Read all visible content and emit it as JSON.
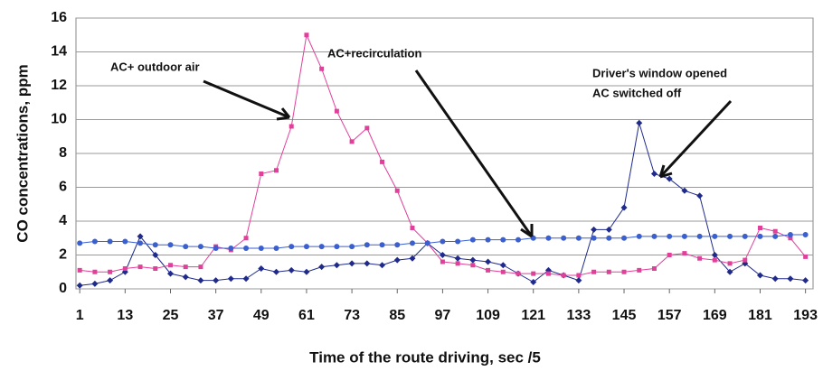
{
  "chart_data": {
    "type": "line",
    "y_label": "CO concentrations, ppm",
    "x_label": "Time of the route driving, sec /5",
    "annotations": [
      "AC+ outdoor air",
      "AC+recirculation",
      "Driver's window  opened",
      "AC switched off"
    ],
    "x": [
      1,
      5,
      9,
      13,
      17,
      21,
      25,
      29,
      33,
      37,
      41,
      45,
      49,
      53,
      57,
      61,
      65,
      69,
      73,
      77,
      81,
      85,
      89,
      93,
      97,
      101,
      105,
      109,
      113,
      117,
      121,
      125,
      129,
      133,
      137,
      141,
      145,
      149,
      153,
      157,
      161,
      165,
      169,
      173,
      177,
      181,
      185,
      189,
      193
    ],
    "series": [
      {
        "color": "#1f2a8a",
        "marker": "diamond",
        "values": [
          0.2,
          0.3,
          0.5,
          1.0,
          3.1,
          2.0,
          0.9,
          0.7,
          0.5,
          0.5,
          0.6,
          0.6,
          1.2,
          1.0,
          1.1,
          1.0,
          1.3,
          1.4,
          1.5,
          1.5,
          1.4,
          1.7,
          1.8,
          2.7,
          2.0,
          1.8,
          1.7,
          1.6,
          1.4,
          0.9,
          0.4,
          1.1,
          0.8,
          0.5,
          3.5,
          3.5,
          4.8,
          9.8,
          6.8,
          6.5,
          5.8,
          5.5,
          2.0,
          1.0,
          1.5,
          0.8,
          0.6,
          0.6,
          0.5
        ]
      },
      {
        "color": "#e0409a",
        "marker": "square",
        "values": [
          1.1,
          1.0,
          1.0,
          1.2,
          1.3,
          1.2,
          1.4,
          1.3,
          1.3,
          2.5,
          2.3,
          3.0,
          6.8,
          7.0,
          9.6,
          15,
          13,
          10.5,
          8.7,
          9.5,
          7.5,
          5.8,
          3.6,
          2.7,
          1.6,
          1.5,
          1.4,
          1.1,
          1.0,
          0.9,
          0.9,
          0.9,
          0.8,
          0.8,
          1.0,
          1.0,
          1.0,
          1.1,
          1.2,
          2.0,
          2.1,
          1.8,
          1.7,
          1.5,
          1.7,
          3.6,
          3.4,
          3.0,
          1.9
        ]
      },
      {
        "color": "#3a5fd0",
        "marker": "circle",
        "values": [
          2.7,
          2.8,
          2.8,
          2.8,
          2.7,
          2.6,
          2.6,
          2.5,
          2.5,
          2.4,
          2.4,
          2.4,
          2.4,
          2.4,
          2.5,
          2.5,
          2.5,
          2.5,
          2.5,
          2.6,
          2.6,
          2.6,
          2.7,
          2.7,
          2.8,
          2.8,
          2.9,
          2.9,
          2.9,
          2.9,
          3.0,
          3.0,
          3.0,
          3.0,
          3.0,
          3.0,
          3.0,
          3.1,
          3.1,
          3.1,
          3.1,
          3.1,
          3.1,
          3.1,
          3.1,
          3.1,
          3.1,
          3.2,
          3.2
        ]
      }
    ],
    "xlim": [
      0,
      195
    ],
    "xticks": [
      1,
      13,
      25,
      37,
      49,
      61,
      73,
      85,
      97,
      109,
      121,
      133,
      145,
      157,
      169,
      181,
      193
    ],
    "ylim": [
      0,
      16
    ],
    "yticks": [
      0,
      2,
      4,
      6,
      8,
      10,
      12,
      14,
      16
    ],
    "grid": true
  }
}
